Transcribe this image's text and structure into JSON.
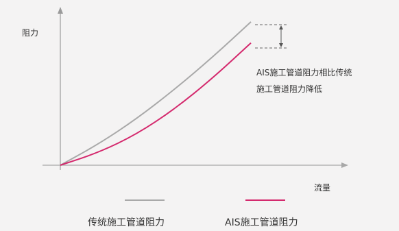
{
  "chart_data": {
    "type": "line",
    "ylabel": "阻力",
    "xlabel": "流量",
    "annotation": [
      "AIS施工管道阻力相比传统",
      "施工管道阻力降低"
    ],
    "xlim": [
      0,
      10
    ],
    "ylim": [
      0,
      10
    ],
    "series": [
      {
        "name": "传统施工管道阻力",
        "color": "#a9a9a9",
        "x": [
          0,
          2,
          4,
          6,
          8,
          10
        ],
        "y": [
          0,
          1.5,
          3.3,
          5.4,
          7.7,
          10.2
        ]
      },
      {
        "name": "AIS施工管道阻力",
        "color": "#d4296d",
        "x": [
          0,
          2,
          4,
          6,
          8,
          10
        ],
        "y": [
          0,
          0.9,
          2.2,
          4.0,
          6.2,
          8.7
        ]
      }
    ]
  }
}
